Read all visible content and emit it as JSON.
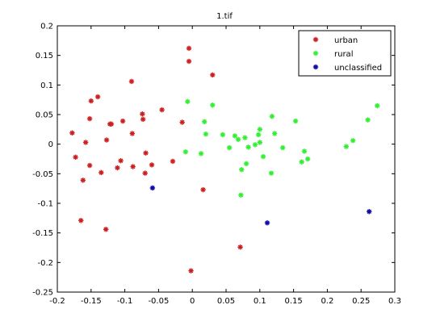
{
  "chart_data": {
    "type": "scatter",
    "title": "1.tif",
    "xlabel": "",
    "ylabel": "",
    "xlim": [
      -0.2,
      0.3
    ],
    "ylim": [
      -0.25,
      0.2
    ],
    "xticks": [
      "-0.2",
      "-0.15",
      "-0.1",
      "-0.05",
      "0",
      "0.05",
      "0.1",
      "0.15",
      "0.2",
      "0.25",
      "0.3"
    ],
    "yticks": [
      "0.2",
      "0.15",
      "0.1",
      "0.05",
      "0",
      "-0.05",
      "-0.1",
      "-0.15",
      "-0.2",
      "-0.25"
    ],
    "grid": false,
    "legend_position": "top-right",
    "series": [
      {
        "name": "urban",
        "color": "#cc1f1f",
        "marker": "asterisk",
        "points": [
          [
            -0.178,
            0.019
          ],
          [
            -0.173,
            -0.022
          ],
          [
            -0.165,
            -0.129
          ],
          [
            -0.162,
            -0.061
          ],
          [
            -0.158,
            0.003
          ],
          [
            -0.152,
            -0.036
          ],
          [
            -0.152,
            0.043
          ],
          [
            -0.15,
            0.073
          ],
          [
            -0.14,
            0.08
          ],
          [
            -0.135,
            -0.048
          ],
          [
            -0.128,
            -0.144
          ],
          [
            -0.127,
            0.007
          ],
          [
            -0.122,
            0.034
          ],
          [
            -0.12,
            0.034
          ],
          [
            -0.111,
            -0.04
          ],
          [
            -0.106,
            -0.028
          ],
          [
            -0.103,
            0.039
          ],
          [
            -0.09,
            0.106
          ],
          [
            -0.089,
            0.018
          ],
          [
            -0.088,
            -0.038
          ],
          [
            -0.074,
            0.051
          ],
          [
            -0.073,
            0.042
          ],
          [
            -0.069,
            -0.015
          ],
          [
            -0.07,
            -0.049
          ],
          [
            -0.06,
            -0.035
          ],
          [
            -0.045,
            0.058
          ],
          [
            -0.029,
            -0.029
          ],
          [
            -0.015,
            0.037
          ],
          [
            -0.005,
            0.162
          ],
          [
            -0.005,
            0.14
          ],
          [
            -0.002,
            -0.214
          ],
          [
            0.016,
            -0.077
          ],
          [
            0.03,
            0.117
          ],
          [
            0.071,
            -0.174
          ]
        ]
      },
      {
        "name": "rural",
        "color": "#33ee33",
        "marker": "asterisk",
        "points": [
          [
            -0.007,
            0.072
          ],
          [
            -0.01,
            -0.013
          ],
          [
            0.013,
            -0.016
          ],
          [
            0.018,
            0.038
          ],
          [
            0.02,
            0.017
          ],
          [
            0.03,
            0.066
          ],
          [
            0.045,
            0.016
          ],
          [
            0.055,
            -0.006
          ],
          [
            0.063,
            0.014
          ],
          [
            0.068,
            0.008
          ],
          [
            0.073,
            -0.043
          ],
          [
            0.072,
            -0.086
          ],
          [
            0.078,
            0.011
          ],
          [
            0.08,
            -0.033
          ],
          [
            0.083,
            -0.005
          ],
          [
            0.093,
            -0.001
          ],
          [
            0.098,
            0.016
          ],
          [
            0.1,
            0.025
          ],
          [
            0.1,
            0.003
          ],
          [
            0.105,
            -0.021
          ],
          [
            0.118,
            0.047
          ],
          [
            0.117,
            -0.049
          ],
          [
            0.122,
            0.018
          ],
          [
            0.134,
            -0.006
          ],
          [
            0.153,
            0.039
          ],
          [
            0.162,
            -0.03
          ],
          [
            0.166,
            -0.012
          ],
          [
            0.171,
            -0.025
          ],
          [
            0.228,
            -0.004
          ],
          [
            0.238,
            0.006
          ],
          [
            0.26,
            0.041
          ],
          [
            0.274,
            0.065
          ]
        ]
      },
      {
        "name": "unclassified",
        "color": "#0a0aa0",
        "marker": "asterisk",
        "points": [
          [
            -0.059,
            -0.074
          ],
          [
            0.111,
            -0.133
          ],
          [
            0.262,
            -0.114
          ]
        ]
      }
    ]
  }
}
